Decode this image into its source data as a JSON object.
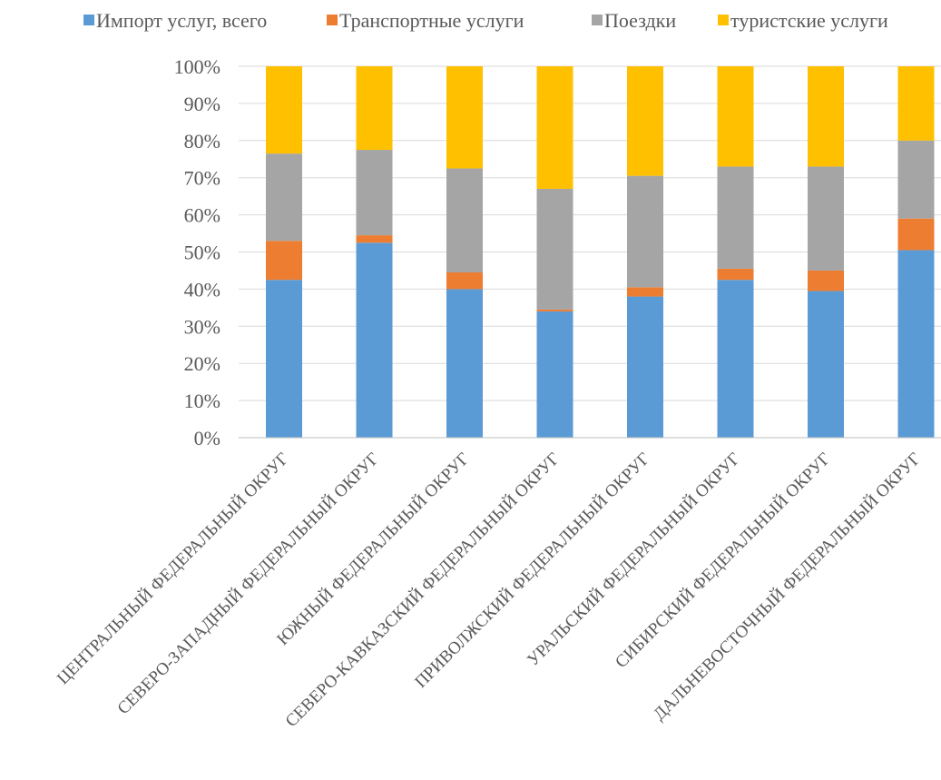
{
  "chart_data": {
    "type": "bar",
    "stacked": true,
    "percent_stacked": true,
    "title": "",
    "xlabel": "",
    "ylabel": "",
    "ylim": [
      0,
      100
    ],
    "y_ticks": [
      "0%",
      "10%",
      "20%",
      "30%",
      "40%",
      "50%",
      "60%",
      "70%",
      "80%",
      "90%",
      "100%"
    ],
    "grid": true,
    "legend_position": "top",
    "categories": [
      "ЦЕНТРАЛЬНЫЙ ФЕДЕРАЛЬНЫЙ ОКРУГ",
      "СЕВЕРО-ЗАПАДНЫЙ ФЕДЕРАЛЬНЫЙ ОКРУГ",
      "ЮЖНЫЙ ФЕДЕРАЛЬНЫЙ ОКРУГ",
      "СЕВЕРО-КАВКАЗСКИЙ ФЕДЕРАЛЬНЫЙ ОКРУГ",
      "ПРИВОЛЖСКИЙ ФЕДЕРАЛЬНЫЙ ОКРУГ",
      "УРАЛЬСКИЙ ФЕДЕРАЛЬНЫЙ ОКРУГ",
      "СИБИРСКИЙ ФЕДЕРАЛЬНЫЙ ОКРУГ",
      "ДАЛЬНЕВОСТОЧНЫЙ ФЕДЕРАЛЬНЫЙ ОКРУГ"
    ],
    "series": [
      {
        "name": "Импорт услуг, всего",
        "color": "#5B9BD5",
        "values": [
          42.5,
          52.5,
          40,
          34,
          38,
          42.5,
          39.5,
          50.5
        ]
      },
      {
        "name": "Транспортные услуги",
        "color": "#ED7D31",
        "values": [
          10.5,
          2,
          4.5,
          0.5,
          2.5,
          3,
          5.5,
          8.5
        ]
      },
      {
        "name": "Поездки",
        "color": "#A5A5A5",
        "values": [
          23.5,
          23,
          28,
          32.5,
          30,
          27.5,
          28,
          21
        ]
      },
      {
        "name": "туристские услуги",
        "color": "#FFC000",
        "values": [
          23.5,
          22.5,
          27.5,
          33,
          29.5,
          27,
          27,
          20
        ]
      }
    ]
  }
}
